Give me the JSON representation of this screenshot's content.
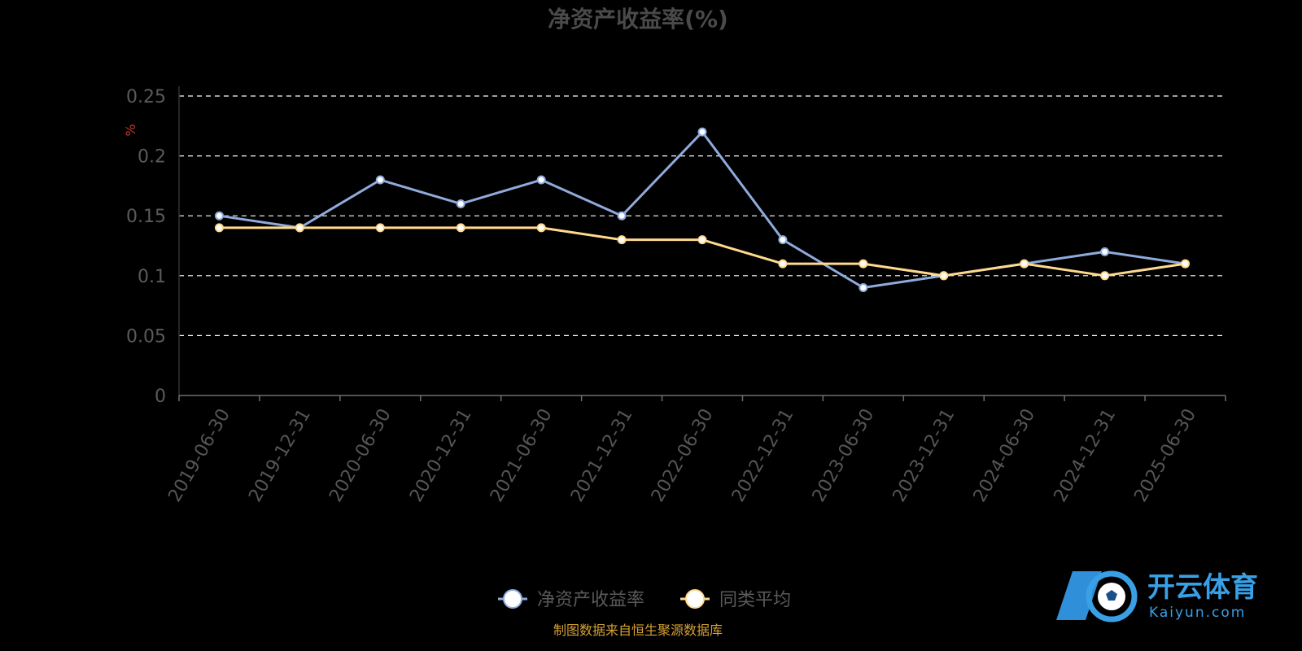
{
  "chart_data": {
    "type": "line",
    "title": "净资产收益率(%)",
    "ylabel": "%",
    "ylim": [
      0,
      0.25
    ],
    "yticks": [
      "0",
      "0.05",
      "0.1",
      "0.15",
      "0.2",
      "0.25"
    ],
    "grid": true,
    "legend_position": "bottom",
    "categories": [
      "2019-06-30",
      "2019-12-31",
      "2020-06-30",
      "2020-12-31",
      "2021-06-30",
      "2021-12-31",
      "2022-06-30",
      "2022-12-31",
      "2023-06-30",
      "2023-12-31",
      "2024-06-30",
      "2024-12-31",
      "2025-06-30"
    ],
    "series": [
      {
        "name": "净资产收益率",
        "color": "#8faadc",
        "values": [
          0.15,
          0.14,
          0.18,
          0.16,
          0.18,
          0.15,
          0.22,
          0.13,
          0.09,
          0.1,
          0.11,
          0.12,
          0.11
        ]
      },
      {
        "name": "同类平均",
        "color": "#ffd98e",
        "values": [
          0.14,
          0.14,
          0.14,
          0.14,
          0.14,
          0.13,
          0.13,
          0.11,
          0.11,
          0.1,
          0.11,
          0.1,
          0.11
        ]
      }
    ]
  },
  "source_text": "制图数据来自恒生聚源数据库",
  "watermark": {
    "text": "开云体育",
    "sub": "Kaiyun.com",
    "icon": "soccer-ball-logo-icon"
  }
}
